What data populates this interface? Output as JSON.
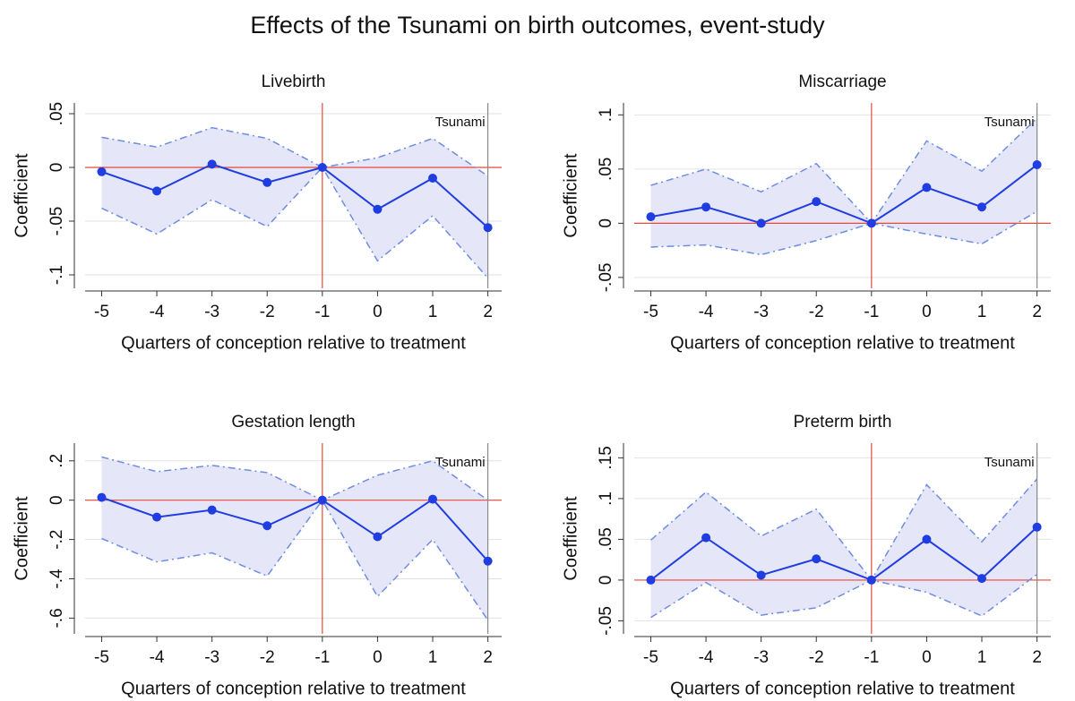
{
  "title": "Effects of the Tsunami on birth outcomes, event-study",
  "chart_data": [
    {
      "type": "line",
      "title": "Livebirth",
      "x_label": "Quarters of conception relative to treatment",
      "y_label": "Coefficient",
      "x": [
        -5,
        -4,
        -3,
        -2,
        -1,
        0,
        1,
        2
      ],
      "values": [
        -0.004,
        -0.022,
        0.003,
        -0.014,
        0,
        -0.039,
        -0.01,
        -0.056
      ],
      "ci_upper": [
        0.028,
        0.019,
        0.037,
        0.027,
        0,
        0.009,
        0.027,
        -0.008
      ],
      "ci_lower": [
        -0.038,
        -0.062,
        -0.03,
        -0.055,
        0,
        -0.087,
        -0.045,
        -0.103
      ],
      "xlim": [
        -5.3,
        2.25
      ],
      "xticks": [
        -5,
        -4,
        -3,
        -2,
        -1,
        0,
        1,
        2
      ],
      "ylim": [
        -0.1125,
        0.06
      ],
      "yticks": [
        {
          "value": -0.1,
          "label": "-.1"
        },
        {
          "value": -0.05,
          "label": "-.05"
        },
        0,
        {
          "value": 0.05,
          "label": ".05"
        }
      ],
      "grid": true,
      "hline": 0,
      "treatment_x": -1,
      "annotation": {
        "text": "Tsunami",
        "x": 2
      },
      "color": "#1f3de0",
      "ci_color": "#6f8de0",
      "ci_fill": "#e5e6f7",
      "ref_color": "#e8483a"
    },
    {
      "type": "line",
      "title": "Miscarriage",
      "x_label": "Quarters of conception relative to treatment",
      "y_label": "Coefficient",
      "x": [
        -5,
        -4,
        -3,
        -2,
        -1,
        0,
        1,
        2
      ],
      "values": [
        0.006,
        0.015,
        0,
        0.02,
        0,
        0.033,
        0.015,
        0.054
      ],
      "ci_upper": [
        0.035,
        0.05,
        0.029,
        0.055,
        0,
        0.076,
        0.048,
        0.097
      ],
      "ci_lower": [
        -0.022,
        -0.02,
        -0.029,
        -0.016,
        0,
        -0.01,
        -0.019,
        0.011
      ],
      "xlim": [
        -5.3,
        2.25
      ],
      "xticks": [
        -5,
        -4,
        -3,
        -2,
        -1,
        0,
        1,
        2
      ],
      "ylim": [
        -0.06,
        0.111
      ],
      "yticks": [
        {
          "value": -0.05,
          "label": "-.05"
        },
        0,
        {
          "value": 0.05,
          "label": ".05"
        },
        {
          "value": 0.1,
          "label": ".1"
        }
      ],
      "grid": true,
      "hline": 0,
      "treatment_x": -1,
      "annotation": {
        "text": "Tsunami",
        "x": 2
      },
      "color": "#1f3de0",
      "ci_color": "#6f8de0",
      "ci_fill": "#e5e6f7",
      "ref_color": "#e8483a"
    },
    {
      "type": "line",
      "title": "Gestation length",
      "x_label": "Quarters of conception relative to treatment",
      "y_label": "Coefficient",
      "x": [
        -5,
        -4,
        -3,
        -2,
        -1,
        0,
        1,
        2
      ],
      "values": [
        0.014,
        -0.086,
        -0.05,
        -0.13,
        0,
        -0.186,
        0.005,
        -0.31
      ],
      "ci_upper": [
        0.22,
        0.145,
        0.177,
        0.14,
        0,
        0.127,
        0.2,
        0
      ],
      "ci_lower": [
        -0.195,
        -0.314,
        -0.268,
        -0.386,
        0,
        -0.49,
        -0.2,
        -0.61
      ],
      "xlim": [
        -5.3,
        2.25
      ],
      "xticks": [
        -5,
        -4,
        -3,
        -2,
        -1,
        0,
        1,
        2
      ],
      "ylim": [
        -0.68,
        0.29
      ],
      "yticks": [
        {
          "value": -0.6,
          "label": "-.6"
        },
        {
          "value": -0.4,
          "label": "-.4"
        },
        {
          "value": -0.2,
          "label": "-.2"
        },
        0,
        {
          "value": 0.2,
          "label": ".2"
        }
      ],
      "grid": true,
      "hline": 0,
      "treatment_x": -1,
      "annotation": {
        "text": "Tsunami",
        "x": 2
      },
      "color": "#1f3de0",
      "ci_color": "#6f8de0",
      "ci_fill": "#e5e6f7",
      "ref_color": "#e8483a"
    },
    {
      "type": "line",
      "title": "Preterm birth",
      "x_label": "Quarters of conception relative to treatment",
      "y_label": "Coefficient",
      "x": [
        -5,
        -4,
        -3,
        -2,
        -1,
        0,
        1,
        2
      ],
      "values": [
        0,
        0.052,
        0.006,
        0.026,
        0,
        0.05,
        0.002,
        0.065
      ],
      "ci_upper": [
        0.049,
        0.108,
        0.054,
        0.087,
        0,
        0.117,
        0.047,
        0.124
      ],
      "ci_lower": [
        -0.046,
        -0.003,
        -0.043,
        -0.034,
        0,
        -0.015,
        -0.044,
        0.007
      ],
      "xlim": [
        -5.3,
        2.25
      ],
      "xticks": [
        -5,
        -4,
        -3,
        -2,
        -1,
        0,
        1,
        2
      ],
      "ylim": [
        -0.066,
        0.168
      ],
      "yticks": [
        {
          "value": -0.05,
          "label": "-.05"
        },
        0,
        {
          "value": 0.05,
          "label": ".05"
        },
        {
          "value": 0.1,
          "label": ".1"
        },
        {
          "value": 0.15,
          "label": ".15"
        }
      ],
      "grid": true,
      "hline": 0,
      "treatment_x": -1,
      "annotation": {
        "text": "Tsunami",
        "x": 2
      },
      "color": "#1f3de0",
      "ci_color": "#6f8de0",
      "ci_fill": "#e5e6f7",
      "ref_color": "#e8483a"
    }
  ]
}
